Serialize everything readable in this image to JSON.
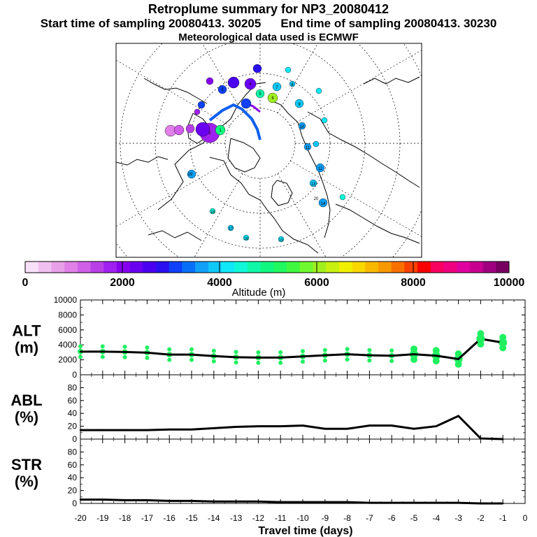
{
  "header": {
    "title": "Retroplume summary for NP3_20080412",
    "start_label": "Start time of sampling 20080413. 30205",
    "end_label": "End time of sampling 20080413. 30230",
    "met_label": "Meteorological data used is ECMWF"
  },
  "colorbar": {
    "label": "Altitude (m)",
    "ticks": [
      "0",
      "2000",
      "4000",
      "6000",
      "8000",
      "10000"
    ],
    "colors": [
      "#f8e0f8",
      "#f0c0f0",
      "#e8a0e8",
      "#e080e8",
      "#d060e8",
      "#b840e8",
      "#a020f0",
      "#8800f0",
      "#6a00f0",
      "#4a00f0",
      "#2a10f0",
      "#1040f8",
      "#0870f8",
      "#10a0f8",
      "#10c8f8",
      "#10e8f8",
      "#10f8d8",
      "#10f8a8",
      "#10f880",
      "#20f860",
      "#40f840",
      "#70f830",
      "#a0f020",
      "#c8f010",
      "#f0f000",
      "#f8d800",
      "#f8b800",
      "#f89800",
      "#f87000",
      "#f84000",
      "#f80000",
      "#f80060",
      "#f00080",
      "#e000a0",
      "#c80090",
      "#a00080",
      "#780060"
    ]
  },
  "map": {
    "labels": [
      "20",
      "19",
      "18",
      "17",
      "16",
      "15",
      "14",
      "13",
      "12",
      "11",
      "10",
      "9",
      "8",
      "7",
      "6",
      "5",
      "4",
      "3",
      "2",
      "1"
    ]
  },
  "chart_data": [
    {
      "type": "line",
      "panel": "ALT",
      "ylabel": "ALT\n(m)",
      "ylabel_lines": [
        "ALT",
        "(m)"
      ],
      "ylim": [
        0,
        10000
      ],
      "yticks": [
        "0",
        "2000",
        "4000",
        "6000",
        "8000",
        "10000"
      ],
      "x": [
        -20,
        -19,
        -18,
        -17,
        -16,
        -15,
        -14,
        -13,
        -12,
        -11,
        -10,
        -9,
        -8,
        -7,
        -6,
        -5,
        -4,
        -3,
        -2,
        -1
      ],
      "values": [
        3100,
        3100,
        3050,
        2950,
        2700,
        2700,
        2500,
        2350,
        2300,
        2300,
        2450,
        2600,
        2750,
        2600,
        2550,
        2750,
        2550,
        2100,
        4800,
        4300
      ],
      "scatter_color": "#20f060"
    },
    {
      "type": "line",
      "panel": "ABL",
      "ylabel_lines": [
        "ABL",
        "(%)"
      ],
      "ylim": [
        0,
        100
      ],
      "yticks": [
        "0",
        "20",
        "40",
        "60",
        "80"
      ],
      "x": [
        -20,
        -19,
        -18,
        -17,
        -16,
        -15,
        -14,
        -13,
        -12,
        -11,
        -10,
        -9,
        -8,
        -7,
        -6,
        -5,
        -4,
        -3,
        -2,
        -1
      ],
      "values": [
        14,
        14,
        14,
        14,
        15,
        15,
        17,
        19,
        20,
        20,
        21,
        16,
        16,
        21,
        21,
        16,
        20,
        36,
        1,
        0
      ]
    },
    {
      "type": "line",
      "panel": "STR",
      "ylabel_lines": [
        "STR",
        "(%)"
      ],
      "ylim": [
        0,
        100
      ],
      "yticks": [
        "0",
        "20",
        "40",
        "60",
        "80"
      ],
      "x": [
        -20,
        -19,
        -18,
        -17,
        -16,
        -15,
        -14,
        -13,
        -12,
        -11,
        -10,
        -9,
        -8,
        -7,
        -6,
        -5,
        -4,
        -3,
        -2,
        -1
      ],
      "values": [
        6,
        6,
        5,
        5,
        4,
        4,
        3,
        3,
        3,
        2,
        2,
        2,
        2,
        1,
        1,
        1,
        1,
        1,
        0,
        0
      ]
    }
  ],
  "xaxis": {
    "xlabel": "Travel time (days)",
    "ticks": [
      "-20",
      "-19",
      "-18",
      "-17",
      "-16",
      "-15",
      "-14",
      "-13",
      "-12",
      "-11",
      "-10",
      "-9",
      "-8",
      "-7",
      "-6",
      "-5",
      "-4",
      "-3",
      "-2",
      "-1",
      "0"
    ]
  }
}
